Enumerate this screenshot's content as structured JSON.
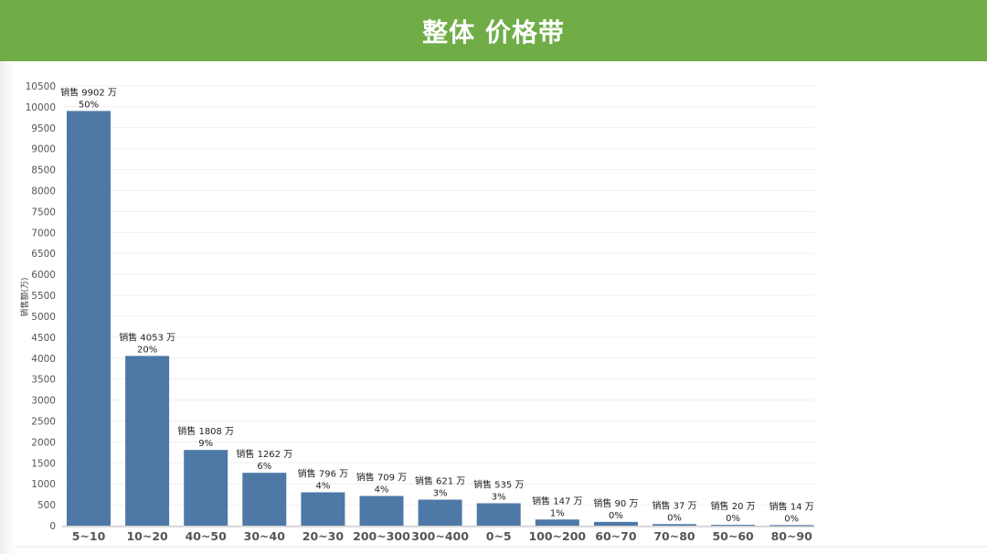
{
  "header": {
    "title": "整体 价格带"
  },
  "chart_data": {
    "type": "bar",
    "title": "整体 价格带",
    "xlabel": "",
    "ylabel": "销售额(万)",
    "ylim": [
      0,
      10500
    ],
    "ytick_step": 500,
    "grid": true,
    "bar_color": "#4e79a7",
    "categories": [
      "5~10",
      "10~20",
      "40~50",
      "30~40",
      "20~30",
      "200~300",
      "300~400",
      "0~5",
      "100~200",
      "60~70",
      "70~80",
      "50~60",
      "80~90"
    ],
    "values": [
      9902,
      4053,
      1808,
      1262,
      796,
      709,
      621,
      535,
      147,
      90,
      37,
      20,
      14
    ],
    "labels": [
      "销售 9902 万",
      "销售 4053 万",
      "销售 1808 万",
      "销售 1262 万",
      "销售 796 万",
      "销售 709 万",
      "销售 621 万",
      "销售 535 万",
      "销售 147 万",
      "销售 90 万",
      "销售 37 万",
      "销售 20 万",
      "销售 14 万"
    ],
    "percents": [
      "50%",
      "20%",
      "9%",
      "6%",
      "4%",
      "4%",
      "3%",
      "3%",
      "1%",
      "0%",
      "0%",
      "0%",
      "0%"
    ]
  }
}
